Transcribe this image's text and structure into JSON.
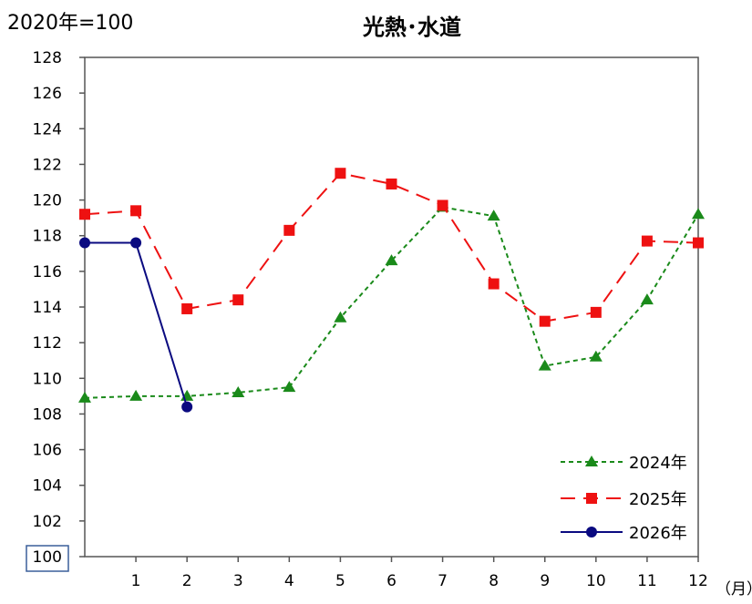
{
  "base_label": "2020年=100",
  "chart_data": {
    "type": "line",
    "title": "光熱･水道",
    "x_unit": "（月）",
    "x_ticks": [
      1,
      2,
      3,
      4,
      5,
      6,
      7,
      8,
      9,
      10,
      11,
      12
    ],
    "ylim": [
      100,
      128
    ],
    "y_ticks": [
      100,
      102,
      104,
      106,
      108,
      110,
      112,
      114,
      116,
      118,
      120,
      122,
      124,
      126,
      128
    ],
    "grid": false,
    "legend_position": "bottom-right",
    "series": [
      {
        "name": "2024年",
        "color": "#1a8a1a",
        "marker": "triangle",
        "dash": "dotted",
        "x": [
          0,
          1,
          2,
          3,
          4,
          5,
          6,
          7,
          8,
          9,
          10,
          11,
          12
        ],
        "values": [
          108.9,
          109.0,
          109.0,
          109.2,
          109.5,
          113.4,
          116.6,
          119.6,
          119.1,
          110.7,
          111.2,
          114.4,
          119.2
        ]
      },
      {
        "name": "2025年",
        "color": "#ee1111",
        "marker": "square",
        "dash": "dashed",
        "x": [
          0,
          1,
          2,
          3,
          4,
          5,
          6,
          7,
          8,
          9,
          10,
          11,
          12
        ],
        "values": [
          119.2,
          119.4,
          113.9,
          114.4,
          118.3,
          121.5,
          120.9,
          119.7,
          115.3,
          113.2,
          113.7,
          117.7,
          117.6
        ]
      },
      {
        "name": "2026年",
        "color": "#0a0a80",
        "marker": "circle",
        "dash": "solid",
        "x": [
          0,
          1,
          2
        ],
        "values": [
          117.6,
          117.6,
          108.4
        ]
      }
    ]
  }
}
